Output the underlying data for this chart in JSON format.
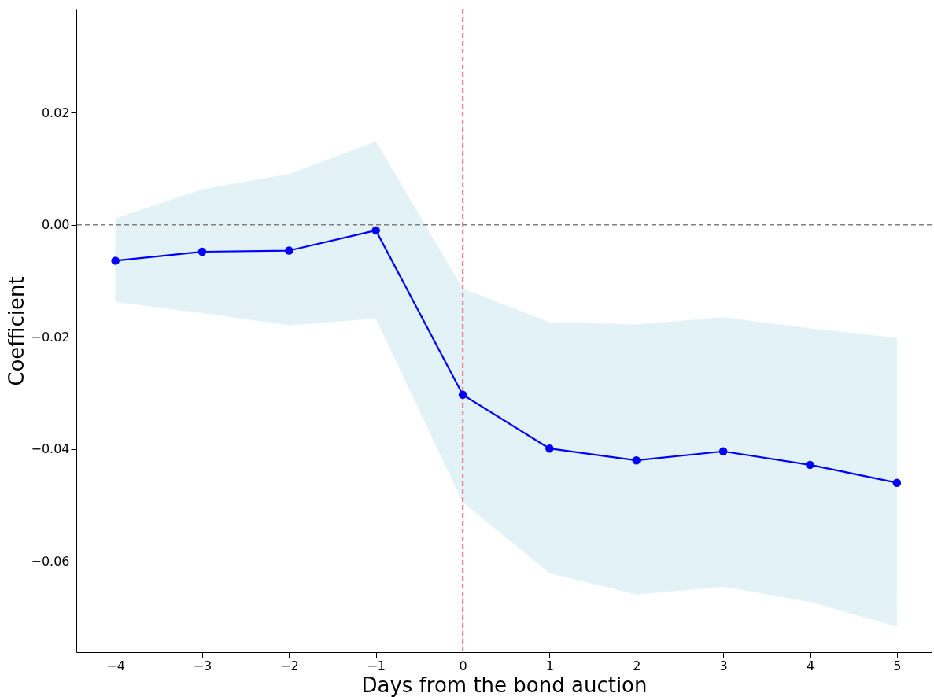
{
  "chart_data": {
    "type": "line",
    "xlabel": "Days from the bond auction",
    "ylabel": "Coefficient",
    "x": [
      -4,
      -3,
      -2,
      -1,
      0,
      1,
      2,
      3,
      4,
      5
    ],
    "series": [
      {
        "color": "#0000ff",
        "values": [
          -0.0064,
          -0.0048,
          -0.0046,
          -0.001,
          -0.0303,
          -0.0399,
          -0.042,
          -0.0404,
          -0.0428,
          -0.046
        ],
        "lower": [
          -0.0137,
          -0.0157,
          -0.0179,
          -0.0167,
          -0.0494,
          -0.0621,
          -0.0659,
          -0.0645,
          -0.0672,
          -0.0716
        ],
        "upper": [
          0.0011,
          0.0063,
          0.009,
          0.0148,
          -0.0114,
          -0.0174,
          -0.0178,
          -0.0165,
          -0.0185,
          -0.0202
        ]
      }
    ],
    "xlim": [
      -4.45,
      5.4
    ],
    "ylim": [
      -0.0762,
      0.0384
    ],
    "xticks": [
      {
        "value": -4,
        "label": "−4"
      },
      {
        "value": -3,
        "label": "−3"
      },
      {
        "value": -2,
        "label": "−2"
      },
      {
        "value": -1,
        "label": "−1"
      },
      0,
      1,
      2,
      3,
      4,
      5
    ],
    "yticks": [
      {
        "value": -0.06,
        "label": "−0.06"
      },
      {
        "value": -0.04,
        "label": "−0.04"
      },
      {
        "value": -0.02,
        "label": "−0.02"
      },
      {
        "value": 0,
        "label": "0.00"
      },
      {
        "value": 0.02,
        "label": "0.02"
      }
    ],
    "ref_lines": [
      {
        "axis": "y",
        "value": 0,
        "color": "#808080",
        "line_style": "dashed"
      },
      {
        "axis": "x",
        "value": 0,
        "color": "#f08080",
        "line_style": "dashed"
      }
    ],
    "marker": "circle",
    "line_style": "solid"
  }
}
